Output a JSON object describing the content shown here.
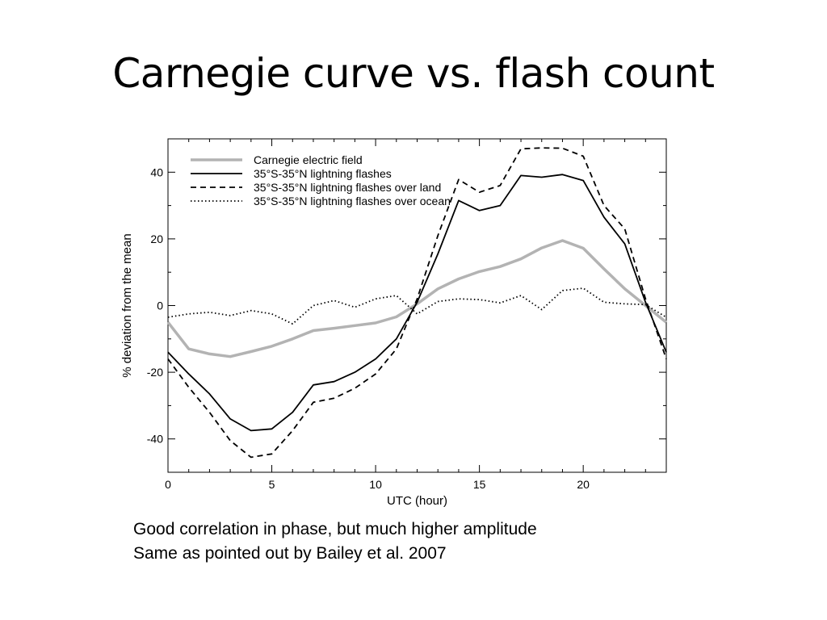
{
  "slide": {
    "title": "Carnegie curve vs. flash count",
    "caption_lines": [
      "Good correlation in phase, but much higher amplitude",
      "Same as pointed out by Bailey et al. 2007"
    ]
  },
  "chart_data": {
    "type": "line",
    "xlabel": "UTC (hour)",
    "ylabel": "% deviation from the mean",
    "xlim": [
      0,
      24
    ],
    "ylim": [
      -50,
      50
    ],
    "xticks": [
      0,
      5,
      10,
      15,
      20
    ],
    "yticks": [
      -40,
      -20,
      0,
      20,
      40
    ],
    "legend_position": "top-left",
    "x": [
      0,
      1,
      2,
      3,
      4,
      5,
      6,
      7,
      8,
      9,
      10,
      11,
      12,
      13,
      14,
      15,
      16,
      17,
      18,
      19,
      20,
      21,
      22,
      23,
      24
    ],
    "series": [
      {
        "name": "Carnegie electric field",
        "style": "solid-gray-thick",
        "color": "#b3b3b3",
        "values": [
          -5,
          -13,
          -14.5,
          -15.3,
          -13.8,
          -12.2,
          -10,
          -7.5,
          -6.8,
          -6,
          -5.2,
          -3.4,
          0.5,
          5,
          8,
          10.2,
          11.7,
          14,
          17.3,
          19.5,
          17.2,
          11,
          5,
          0,
          -5
        ]
      },
      {
        "name": "35°S-35°N lightning flashes",
        "style": "solid",
        "color": "#000000",
        "values": [
          -14,
          -20.5,
          -26.5,
          -34,
          -37.5,
          -37,
          -32,
          -23.8,
          -22.8,
          -20,
          -16,
          -10,
          1,
          15.5,
          31.5,
          28.5,
          30,
          39,
          38.5,
          39.3,
          37.5,
          26.5,
          18.5,
          1,
          -14
        ]
      },
      {
        "name": "35°S-35°N lightning flashes over land",
        "style": "dashed",
        "color": "#000000",
        "values": [
          -16,
          -24.5,
          -32,
          -40.5,
          -45.5,
          -44.5,
          -37.5,
          -29,
          -27.8,
          -24.8,
          -20.5,
          -13,
          2,
          21,
          37.8,
          34,
          36,
          47,
          47.3,
          47.2,
          44.8,
          30,
          23,
          2,
          -16
        ]
      },
      {
        "name": "35°S-35°N lightning flashes over ocean",
        "style": "dotted",
        "color": "#000000",
        "values": [
          -3.5,
          -2.5,
          -2,
          -3,
          -1.5,
          -2.5,
          -5.5,
          0,
          1.5,
          -0.5,
          2,
          3,
          -2.5,
          1.2,
          2,
          1.8,
          0.8,
          3,
          -1.2,
          4.5,
          5.2,
          1,
          0.5,
          0.3,
          -3.5
        ]
      }
    ]
  }
}
